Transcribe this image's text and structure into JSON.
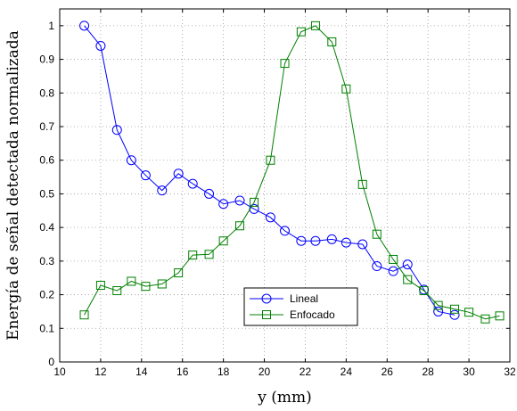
{
  "chart_data": {
    "type": "line",
    "title": "",
    "xlabel": "y (mm)",
    "ylabel": "Energía de señal detectada normalizada",
    "xlim": [
      10,
      32
    ],
    "ylim": [
      0,
      1.05
    ],
    "xticks": [
      10,
      12,
      14,
      16,
      18,
      20,
      22,
      24,
      26,
      28,
      30,
      32
    ],
    "yticks": [
      0,
      0.1,
      0.2,
      0.3,
      0.4,
      0.5,
      0.6,
      0.7,
      0.8,
      0.9,
      1
    ],
    "ytick_labels": [
      "0",
      "0.1",
      "0.2",
      "0.3",
      "0.4",
      "0.5",
      "0.6",
      "0.7",
      "0.8",
      "0.9",
      "1"
    ],
    "grid": true,
    "legend_position": "bottom-center",
    "series": [
      {
        "name": "Lineal",
        "color": "#0000ff",
        "marker": "circle",
        "x": [
          11.2,
          12.0,
          12.8,
          13.5,
          14.2,
          15.0,
          15.8,
          16.5,
          17.3,
          18.0,
          18.8,
          19.5,
          20.3,
          21.0,
          21.8,
          22.5,
          23.3,
          24.0,
          24.8,
          25.5,
          26.3,
          27.0,
          27.8,
          28.5,
          29.3
        ],
        "y": [
          1.0,
          0.94,
          0.69,
          0.6,
          0.555,
          0.51,
          0.56,
          0.53,
          0.5,
          0.47,
          0.48,
          0.455,
          0.43,
          0.39,
          0.36,
          0.36,
          0.365,
          0.355,
          0.35,
          0.285,
          0.27,
          0.29,
          0.215,
          0.15,
          0.14
        ]
      },
      {
        "name": "Enfocado",
        "color": "#008000",
        "marker": "square",
        "x": [
          11.2,
          12.0,
          12.8,
          13.5,
          14.2,
          15.0,
          15.8,
          16.5,
          17.3,
          18.0,
          18.8,
          19.5,
          20.3,
          21.0,
          21.8,
          22.5,
          23.3,
          24.0,
          24.8,
          25.5,
          26.3,
          27.0,
          27.8,
          28.5,
          29.3,
          30.0,
          30.8,
          31.5
        ],
        "y": [
          0.14,
          0.228,
          0.212,
          0.24,
          0.225,
          0.232,
          0.265,
          0.318,
          0.32,
          0.36,
          0.405,
          0.475,
          0.6,
          0.888,
          0.982,
          1.0,
          0.952,
          0.812,
          0.528,
          0.38,
          0.305,
          0.245,
          0.212,
          0.168,
          0.157,
          0.148,
          0.128,
          0.137
        ]
      }
    ]
  }
}
